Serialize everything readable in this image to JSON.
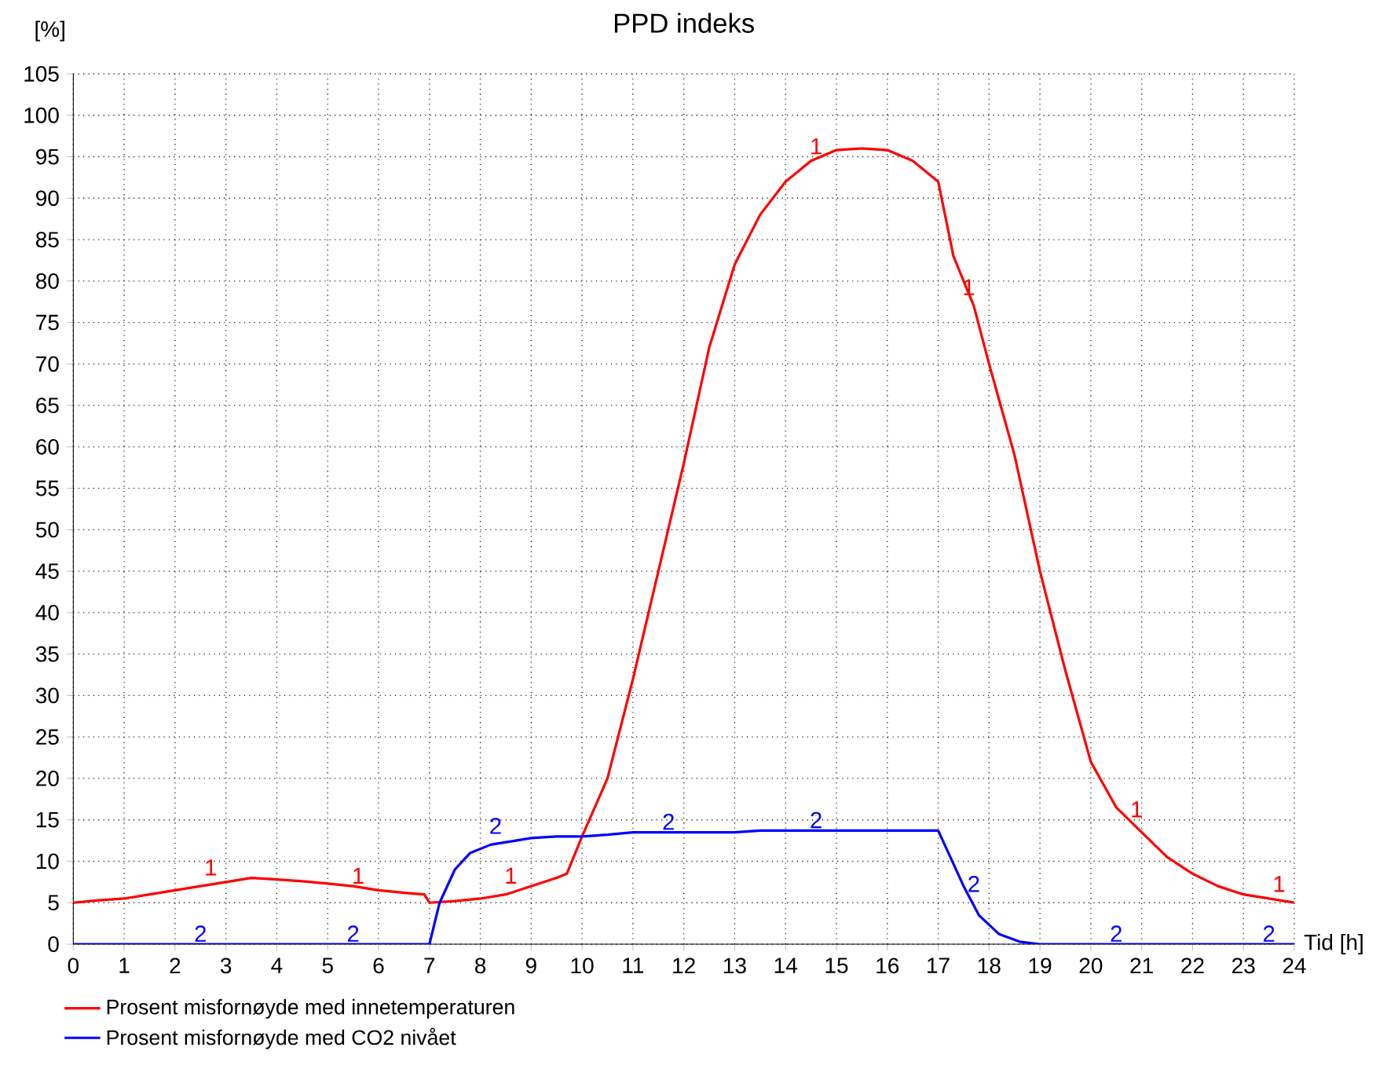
{
  "chart_data": {
    "type": "line",
    "title": "PPD indeks",
    "xlabel": "Tid [h]",
    "ylabel": "[%]",
    "xlim": [
      0,
      24
    ],
    "xticks": [
      0,
      1,
      2,
      3,
      4,
      5,
      6,
      7,
      8,
      9,
      10,
      11,
      12,
      13,
      14,
      15,
      16,
      17,
      18,
      19,
      20,
      21,
      22,
      23,
      24
    ],
    "ylim": [
      0,
      105
    ],
    "yticks": [
      0,
      5,
      10,
      15,
      20,
      25,
      30,
      35,
      40,
      45,
      50,
      55,
      60,
      65,
      70,
      75,
      80,
      85,
      90,
      95,
      100,
      105
    ],
    "grid": true,
    "legend": "bottom left",
    "marker": "none",
    "line_style": "solid",
    "series": [
      {
        "name": "Prosent misfornøyde med innetemperaturen",
        "color": "#ff0000",
        "x": [
          0,
          0.5,
          1,
          1.5,
          2,
          2.5,
          3,
          3.5,
          4,
          4.5,
          5,
          5.5,
          6,
          6.5,
          6.9,
          7,
          7.5,
          8,
          8.5,
          9,
          9.5,
          9.7,
          10,
          10.5,
          11,
          11.5,
          12,
          12.5,
          13,
          13.5,
          14,
          14.5,
          15,
          15.5,
          16,
          16.5,
          17,
          17.3,
          17.7,
          18,
          18.5,
          19,
          19.5,
          20,
          20.5,
          21,
          21.5,
          22,
          22.5,
          23,
          23.5,
          24
        ],
        "values": [
          5,
          5.3,
          5.5,
          6,
          6.5,
          7,
          7.5,
          8,
          7.8,
          7.6,
          7.3,
          7,
          6.5,
          6.2,
          6,
          5,
          5.2,
          5.5,
          6,
          7,
          8,
          8.5,
          13,
          20,
          32,
          45,
          58,
          72,
          82,
          88,
          92,
          94.5,
          95.8,
          96,
          95.8,
          94.5,
          92,
          83,
          77,
          70,
          59,
          45,
          33,
          22,
          16.5,
          13.5,
          10.5,
          8.5,
          7,
          6,
          5.5,
          5
        ]
      },
      {
        "name": "Prosent misfornøyde med CO2 nivået",
        "color": "#0000ff",
        "x": [
          0,
          7,
          7.2,
          7.5,
          7.8,
          8.2,
          8.7,
          9,
          9.5,
          10,
          10.5,
          11,
          13,
          13.5,
          17,
          17.5,
          17.8,
          18.2,
          18.6,
          19,
          24
        ],
        "values": [
          0,
          0,
          5,
          9,
          11,
          12,
          12.5,
          12.8,
          13,
          13,
          13.2,
          13.5,
          13.5,
          13.7,
          13.7,
          7,
          3.5,
          1.2,
          0.3,
          0,
          0
        ]
      }
    ],
    "annotations": [
      {
        "text": "1",
        "x": 2.7,
        "y": 8
      },
      {
        "text": "1",
        "x": 5.6,
        "y": 7
      },
      {
        "text": "1",
        "x": 8.6,
        "y": 7
      },
      {
        "text": "1",
        "x": 14.6,
        "y": 95
      },
      {
        "text": "1",
        "x": 17.6,
        "y": 78
      },
      {
        "text": "1",
        "x": 20.9,
        "y": 15
      },
      {
        "text": "1",
        "x": 23.7,
        "y": 6
      },
      {
        "text": "2",
        "x": 2.5,
        "y": 0
      },
      {
        "text": "2",
        "x": 5.5,
        "y": 0
      },
      {
        "text": "2",
        "x": 8.3,
        "y": 13
      },
      {
        "text": "2",
        "x": 11.7,
        "y": 13.5
      },
      {
        "text": "2",
        "x": 14.6,
        "y": 13.7
      },
      {
        "text": "2",
        "x": 17.7,
        "y": 6
      },
      {
        "text": "2",
        "x": 20.5,
        "y": 0
      },
      {
        "text": "2",
        "x": 23.5,
        "y": 0
      }
    ]
  }
}
